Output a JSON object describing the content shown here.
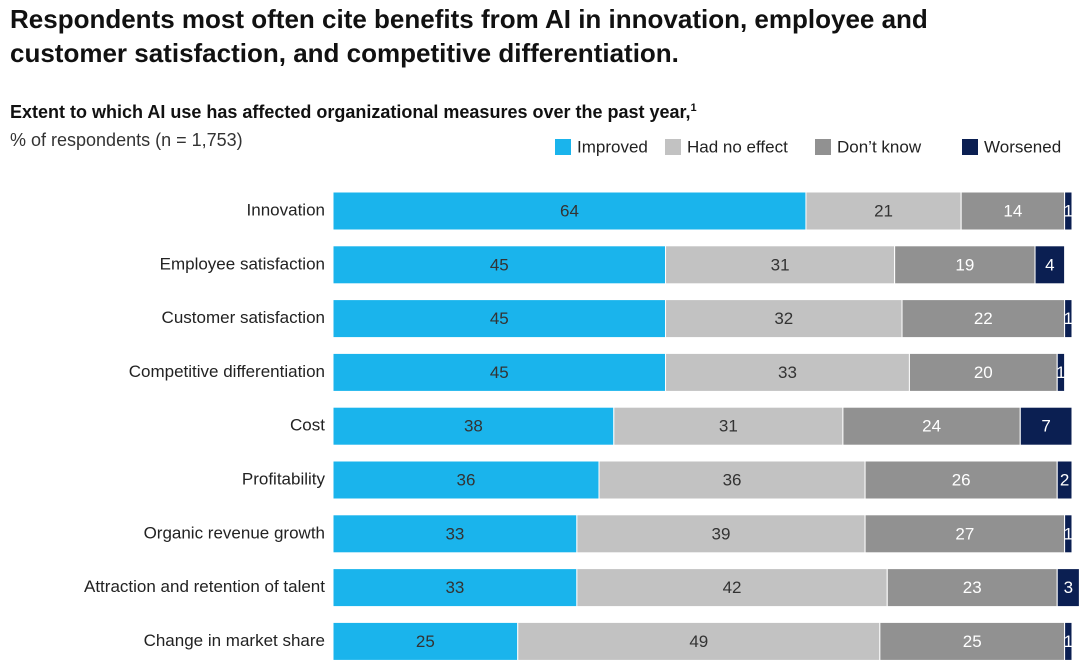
{
  "chart_data": {
    "type": "bar",
    "orientation": "horizontal",
    "stacked": true,
    "title": "Respondents most often cite benefits from AI in innovation, employee and customer satisfaction, and competitive differentiation.",
    "subtitle": "Extent to which AI use has affected organizational measures over the past year,",
    "subtitle_footnote": "1",
    "unit_note": "% of respondents (n = 1,753)",
    "categories": [
      "Innovation",
      "Employee satisfaction",
      "Customer satisfaction",
      "Competitive differentiation",
      "Cost",
      "Profitability",
      "Organic revenue growth",
      "Attraction and retention of talent",
      "Change in market share"
    ],
    "series": [
      {
        "name": "Improved",
        "color": "#1ab4ec",
        "values": [
          64,
          45,
          45,
          45,
          38,
          36,
          33,
          33,
          25
        ]
      },
      {
        "name": "Had no effect",
        "color": "#c2c2c2",
        "values": [
          21,
          31,
          32,
          33,
          31,
          36,
          39,
          42,
          49
        ]
      },
      {
        "name": "Don’t know",
        "color": "#919191",
        "values": [
          14,
          19,
          22,
          20,
          24,
          26,
          27,
          23,
          25
        ]
      },
      {
        "name": "Worsened",
        "color": "#0b1f52",
        "values": [
          1,
          4,
          1,
          1,
          7,
          2,
          1,
          3,
          1
        ]
      }
    ],
    "legend": "top-right"
  }
}
